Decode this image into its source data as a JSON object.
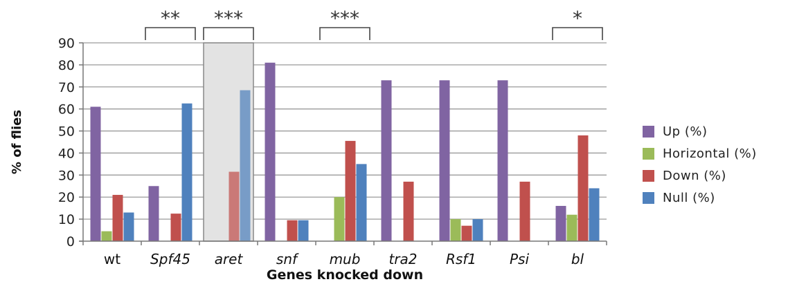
{
  "chart_data": {
    "type": "bar",
    "xlabel": "Genes knocked down",
    "ylabel": "% of flies",
    "ylim": [
      0,
      90
    ],
    "yticks": [
      0,
      10,
      20,
      30,
      40,
      50,
      60,
      70,
      80,
      90
    ],
    "grid": true,
    "legend_position": "right",
    "categories": [
      "wt",
      "Spf45",
      "aret",
      "snf",
      "mub",
      "tra2",
      "Rsf1",
      "Psi",
      "bl"
    ],
    "italic_categories": [
      "Spf45",
      "aret",
      "snf",
      "mub",
      "tra2",
      "Rsf1",
      "Psi",
      "bl"
    ],
    "highlighted_category": "aret",
    "series": [
      {
        "name": "Up (%)",
        "color": "#8064A2",
        "values": [
          61,
          25,
          0,
          81,
          0,
          73,
          73,
          73,
          16
        ]
      },
      {
        "name": "Horizontal (%)",
        "color": "#9BBB59",
        "values": [
          4.5,
          0,
          0,
          0,
          20,
          0,
          10,
          0,
          12
        ]
      },
      {
        "name": "Down (%)",
        "color": "#C0504D",
        "values": [
          21,
          12.5,
          31.5,
          9.5,
          45.5,
          27,
          7,
          27,
          48
        ]
      },
      {
        "name": "Null (%)",
        "color": "#4F81BD",
        "values": [
          13,
          62.5,
          68.5,
          9.5,
          35,
          0,
          10,
          0,
          24
        ]
      }
    ],
    "annotations": [
      {
        "label": "**",
        "category": "Spf45"
      },
      {
        "label": "***",
        "category": "aret"
      },
      {
        "label": "***",
        "category": "mub"
      },
      {
        "label": "*",
        "category": "bl"
      }
    ]
  }
}
